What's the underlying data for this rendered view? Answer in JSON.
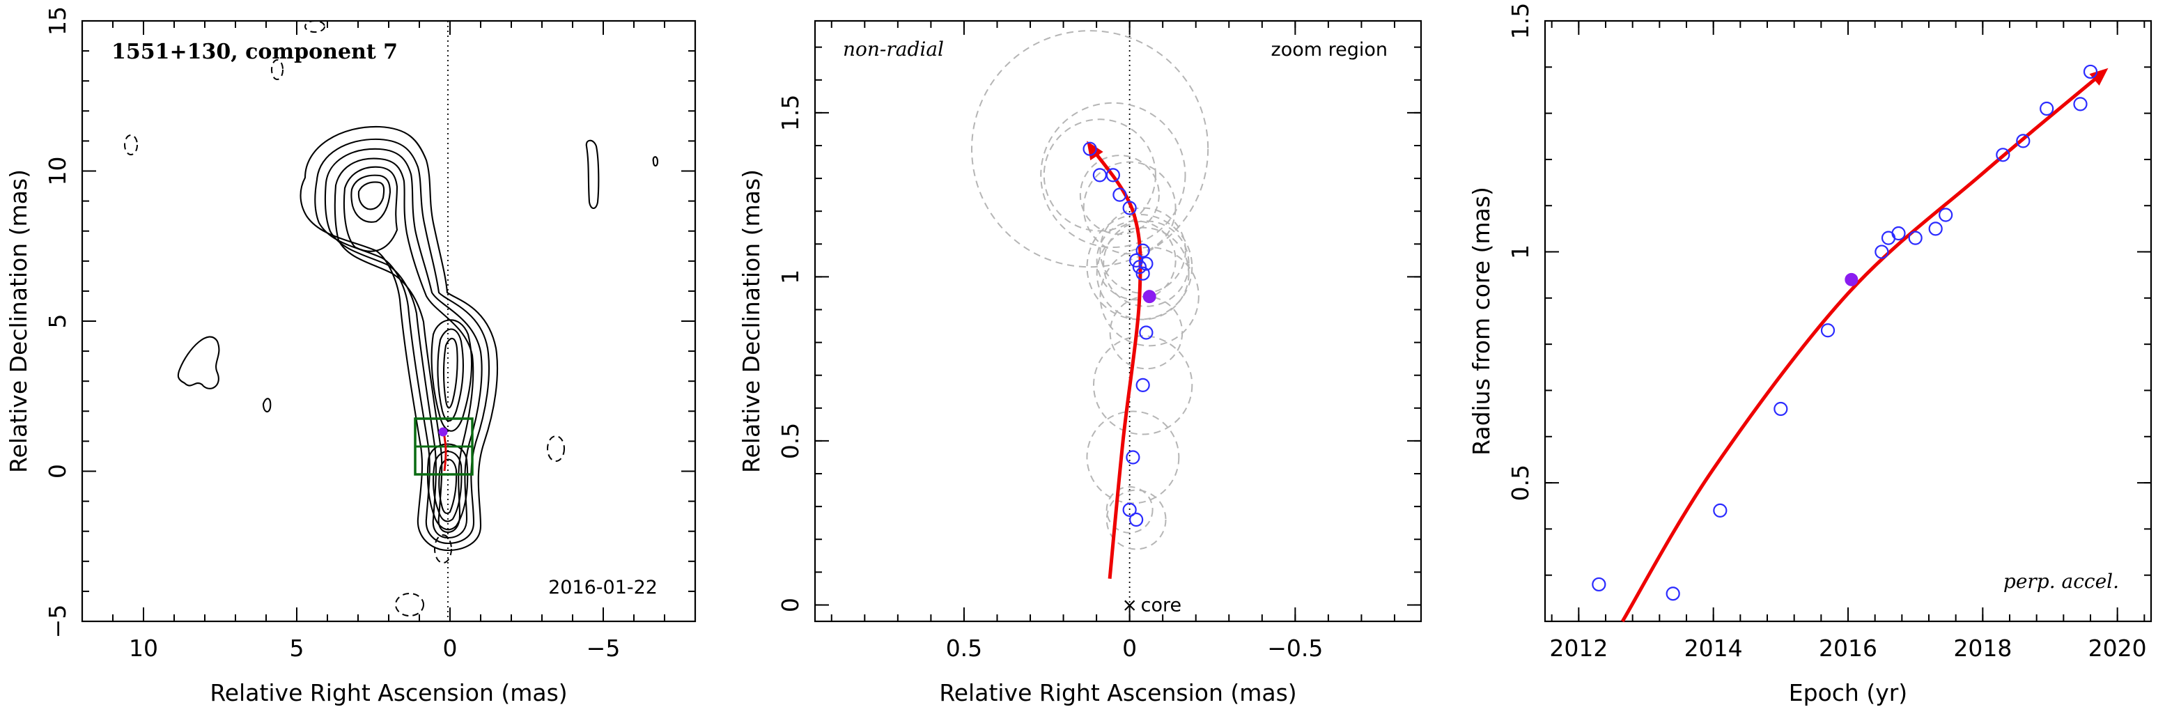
{
  "chart_data": [
    {
      "type": "contour",
      "title": "1551+130, component 7",
      "date": "2016-01-22",
      "xlabel": "Relative Right Ascension (mas)",
      "ylabel": "Relative Declination (mas)",
      "xlim": [
        12,
        -8
      ],
      "ylim": [
        -5,
        15
      ],
      "xticks": [
        10,
        5,
        0,
        -5
      ],
      "yticks": [
        -5,
        0,
        5,
        10,
        15
      ],
      "zoom_region": {
        "x": [
          0.9,
          -1.0
        ],
        "y": [
          0.0,
          1.75
        ]
      },
      "component_position": {
        "x": 0.05,
        "y": 1.3
      }
    },
    {
      "type": "scatter",
      "title": "zoom region",
      "annotation": "non-radial",
      "core_label": "core",
      "xlabel": "Relative Right Ascension (mas)",
      "ylabel": "Relative Declination (mas)",
      "xlim": [
        0.95,
        -0.88
      ],
      "ylim": [
        -0.05,
        1.78
      ],
      "xticks": [
        0.5,
        0,
        -0.5
      ],
      "yticks": [
        0,
        0.5,
        1,
        1.5
      ],
      "points": [
        {
          "x": 0.12,
          "y": 1.39,
          "r": 0.36
        },
        {
          "x": 0.09,
          "y": 1.31,
          "r": 0.17
        },
        {
          "x": 0.05,
          "y": 1.31,
          "r": 0.22
        },
        {
          "x": 0.03,
          "y": 1.25,
          "r": 0.12
        },
        {
          "x": 0.0,
          "y": 1.21,
          "r": 0.14
        },
        {
          "x": -0.04,
          "y": 1.08,
          "r": 0.13
        },
        {
          "x": -0.02,
          "y": 1.05,
          "r": 0.12
        },
        {
          "x": -0.05,
          "y": 1.04,
          "r": 0.13
        },
        {
          "x": -0.03,
          "y": 1.03,
          "r": 0.16
        },
        {
          "x": -0.04,
          "y": 1.01,
          "r": 0.14
        },
        {
          "x": -0.05,
          "y": 0.83,
          "r": 0.11
        },
        {
          "x": -0.04,
          "y": 0.67,
          "r": 0.15
        },
        {
          "x": -0.01,
          "y": 0.45,
          "r": 0.14
        },
        {
          "x": 0.0,
          "y": 0.29,
          "r": 0.07
        },
        {
          "x": -0.02,
          "y": 0.26,
          "r": 0.09
        }
      ],
      "current_point": {
        "x": -0.06,
        "y": 0.94,
        "r": 0.15
      },
      "fit_curve": [
        [
          0.06,
          0.08
        ],
        [
          0.02,
          0.5
        ],
        [
          -0.03,
          0.94
        ],
        [
          -0.01,
          1.2
        ],
        [
          0.12,
          1.4
        ]
      ]
    },
    {
      "type": "scatter",
      "annotation": "perp. accel.",
      "xlabel": "Epoch (yr)",
      "ylabel": "Radius from core (mas)",
      "xlim": [
        2011.5,
        2020.5
      ],
      "ylim": [
        0.2,
        1.5
      ],
      "xticks": [
        2012,
        2014,
        2016,
        2018,
        2020
      ],
      "yticks": [
        0.5,
        1,
        1.5
      ],
      "points": [
        {
          "x": 2012.3,
          "y": 0.28
        },
        {
          "x": 2013.4,
          "y": 0.26
        },
        {
          "x": 2014.1,
          "y": 0.44
        },
        {
          "x": 2015.0,
          "y": 0.66
        },
        {
          "x": 2015.7,
          "y": 0.83
        },
        {
          "x": 2016.5,
          "y": 1.0
        },
        {
          "x": 2016.6,
          "y": 1.03
        },
        {
          "x": 2016.75,
          "y": 1.04
        },
        {
          "x": 2017.0,
          "y": 1.03
        },
        {
          "x": 2017.3,
          "y": 1.05
        },
        {
          "x": 2017.45,
          "y": 1.08
        },
        {
          "x": 2018.3,
          "y": 1.21
        },
        {
          "x": 2018.6,
          "y": 1.24
        },
        {
          "x": 2018.95,
          "y": 1.31
        },
        {
          "x": 2019.45,
          "y": 1.32
        },
        {
          "x": 2019.6,
          "y": 1.39
        }
      ],
      "current_point": {
        "x": 2016.05,
        "y": 0.94
      },
      "fit_curve": [
        [
          2012.65,
          0.2
        ],
        [
          2014,
          0.53
        ],
        [
          2016,
          0.91
        ],
        [
          2018,
          1.17
        ],
        [
          2019.8,
          1.39
        ]
      ]
    }
  ]
}
